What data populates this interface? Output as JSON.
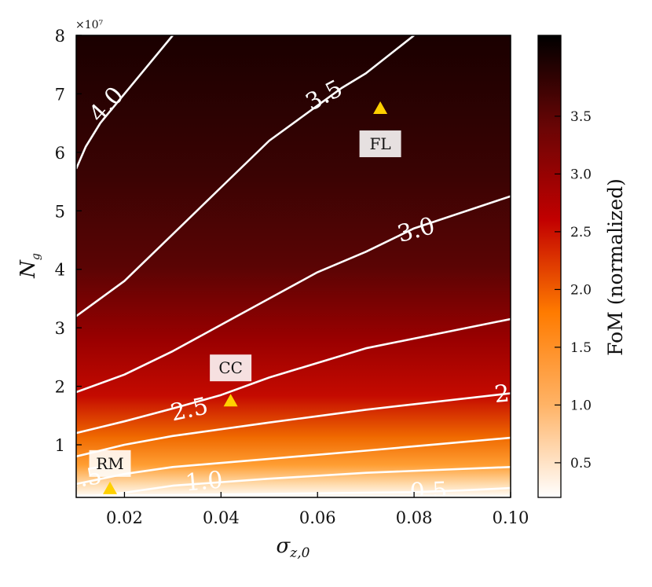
{
  "chart_data": {
    "type": "heatmap",
    "xlabel": "σz,0",
    "ylabel": "Ng",
    "colorbar_label": "FoM (normalized)",
    "xlim": [
      0.01,
      0.1
    ],
    "ylim": [
      0.1,
      8.0
    ],
    "y_multiplier": "×10⁷",
    "x_ticks": [
      "0.02",
      "0.04",
      "0.06",
      "0.08",
      "0.10"
    ],
    "y_ticks": [
      "1",
      "2",
      "3",
      "4",
      "5",
      "6",
      "7",
      "8"
    ],
    "colorbar_ticks": [
      "0.5",
      "1.0",
      "1.5",
      "2.0",
      "2.5",
      "3.0",
      "3.5"
    ],
    "colorbar_range": [
      0.2,
      4.2
    ],
    "colormap": [
      "#ffffff",
      "#ffb366",
      "#ff7b00",
      "#c20000",
      "#6a0505",
      "#000000"
    ],
    "contours": [
      {
        "level": 0.5,
        "label": "0.5",
        "x": [
          0.01,
          0.03,
          0.05,
          0.07,
          0.08,
          0.09,
          0.1
        ],
        "y": [
          0.13,
          0.14,
          0.16,
          0.18,
          0.19,
          0.22,
          0.26
        ]
      },
      {
        "level": 1.0,
        "label": "1.0",
        "x": [
          0.01,
          0.02,
          0.03,
          0.05,
          0.07,
          0.1
        ],
        "y": [
          0.1,
          0.18,
          0.3,
          0.42,
          0.52,
          0.62
        ]
      },
      {
        "level": 1.5,
        "label": "1.5",
        "x": [
          0.01,
          0.02,
          0.03,
          0.05,
          0.07,
          0.1
        ],
        "y": [
          0.33,
          0.5,
          0.62,
          0.76,
          0.9,
          1.12
        ]
      },
      {
        "level": 2.0,
        "label": "2.",
        "x": [
          0.01,
          0.02,
          0.03,
          0.05,
          0.07,
          0.1
        ],
        "y": [
          0.8,
          1.0,
          1.15,
          1.38,
          1.6,
          1.88
        ]
      },
      {
        "level": 2.5,
        "label": "2.5",
        "x": [
          0.01,
          0.02,
          0.03,
          0.04,
          0.05,
          0.07,
          0.1
        ],
        "y": [
          1.2,
          1.4,
          1.62,
          1.85,
          2.15,
          2.65,
          3.15
        ]
      },
      {
        "level": 3.0,
        "label": "3.0",
        "x": [
          0.01,
          0.02,
          0.03,
          0.04,
          0.05,
          0.06,
          0.07,
          0.08,
          0.1
        ],
        "y": [
          1.9,
          2.2,
          2.6,
          3.05,
          3.5,
          3.95,
          4.3,
          4.7,
          5.25
        ]
      },
      {
        "level": 3.5,
        "label": "3.5",
        "x": [
          0.01,
          0.02,
          0.03,
          0.04,
          0.05,
          0.06,
          0.065,
          0.07,
          0.08
        ],
        "y": [
          3.2,
          3.8,
          4.6,
          5.4,
          6.2,
          6.8,
          7.1,
          7.35,
          8.0
        ]
      },
      {
        "level": 4.0,
        "label": "4.0",
        "x": [
          0.01,
          0.012,
          0.015,
          0.02,
          0.025,
          0.03
        ],
        "y": [
          5.72,
          6.1,
          6.5,
          7.0,
          7.5,
          8.0
        ]
      }
    ],
    "contour_label_pos": [
      {
        "label": "0.5",
        "x": 0.083,
        "y": 0.18,
        "rot": -2
      },
      {
        "label": "1.0",
        "x": 0.0365,
        "y": 0.35,
        "rot": -5
      },
      {
        "label": "1.5",
        "x": 0.0115,
        "y": 0.4,
        "rot": -10
      },
      {
        "label": "2.",
        "x": 0.099,
        "y": 1.85,
        "rot": -5
      },
      {
        "label": "2.5",
        "x": 0.0335,
        "y": 1.58,
        "rot": -12
      },
      {
        "label": "3.0",
        "x": 0.0805,
        "y": 4.65,
        "rot": -15
      },
      {
        "label": "3.5",
        "x": 0.0615,
        "y": 6.95,
        "rot": -28
      },
      {
        "label": "4.0",
        "x": 0.0165,
        "y": 6.8,
        "rot": -48
      }
    ],
    "markers": [
      {
        "name": "FL",
        "x": 0.073,
        "y": 6.75
      },
      {
        "name": "CC",
        "x": 0.042,
        "y": 1.75
      },
      {
        "name": "RM",
        "x": 0.017,
        "y": 0.25
      }
    ],
    "marker_color": "#ffd000"
  }
}
